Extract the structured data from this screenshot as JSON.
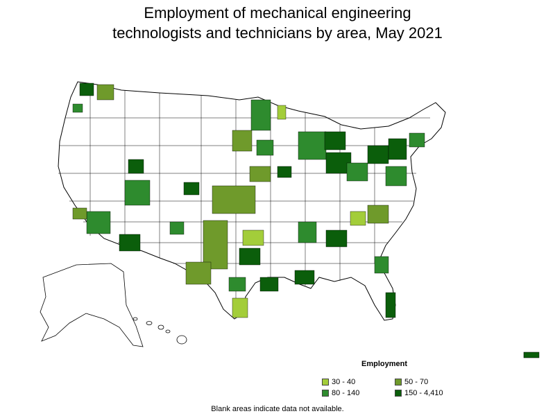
{
  "title": {
    "line1": "Employment of mechanical engineering",
    "line2": "technologists and technicians by area, May 2021"
  },
  "legend": {
    "title": "Employment",
    "items": [
      {
        "label": "30 - 40",
        "color": "#a3cd3a"
      },
      {
        "label": "50 - 70",
        "color": "#6f9a2b"
      },
      {
        "label": "80 - 140",
        "color": "#2e8b2e"
      },
      {
        "label": "150 - 4,410",
        "color": "#0b5e0b"
      }
    ]
  },
  "footnote": "Blank areas indicate data not available."
}
